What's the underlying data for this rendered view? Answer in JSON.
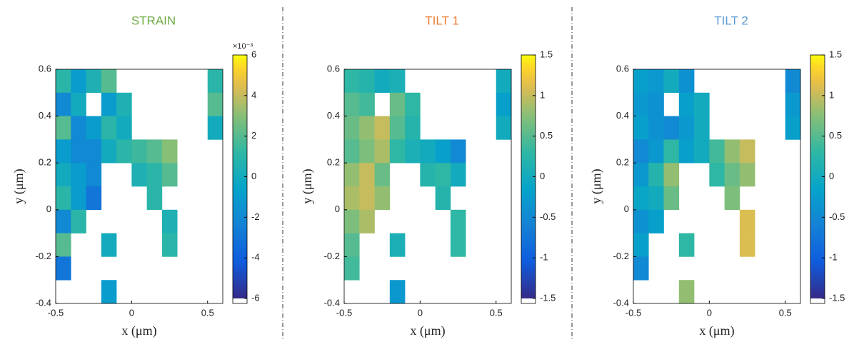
{
  "chart_data": [
    {
      "type": "heatmap",
      "title": "STRAIN",
      "title_color": "#70ad47",
      "xlabel": "x (μm)",
      "ylabel": "y (μm)",
      "xlim": [
        -0.5,
        0.6
      ],
      "xticks": [
        -0.5,
        0,
        0.5
      ],
      "ylim": [
        -0.4,
        0.6
      ],
      "yticks": [
        -0.4,
        -0.2,
        0,
        0.2,
        0.4,
        0.6
      ],
      "colormap": "parula",
      "clim": [
        -6,
        6
      ],
      "cticks": [
        -6,
        -4,
        -2,
        0,
        2,
        4,
        6
      ],
      "cexponent": "×10⁻³",
      "x": [
        -0.45,
        -0.35,
        -0.25,
        -0.15,
        -0.05,
        0.05,
        0.15,
        0.25,
        0.35,
        0.45,
        0.55
      ],
      "y": [
        0.55,
        0.45,
        0.35,
        0.25,
        0.15,
        0.05,
        -0.05,
        -0.15,
        -0.25,
        -0.35
      ],
      "z": [
        [
          1,
          -1,
          0.5,
          2,
          null,
          null,
          null,
          null,
          null,
          null,
          1
        ],
        [
          -2,
          0,
          null,
          -1,
          0.5,
          null,
          null,
          null,
          null,
          null,
          2
        ],
        [
          2,
          -2,
          -1,
          1,
          0,
          null,
          null,
          null,
          null,
          null,
          0
        ],
        [
          -1,
          -2,
          -2,
          0,
          1,
          1.5,
          2,
          3,
          null,
          null,
          null
        ],
        [
          0,
          -1,
          -2,
          null,
          null,
          0.5,
          1,
          2,
          null,
          null,
          null
        ],
        [
          1,
          -1,
          -3,
          null,
          null,
          null,
          1,
          null,
          null,
          null,
          null
        ],
        [
          -2,
          1,
          null,
          null,
          null,
          null,
          null,
          0.5,
          null,
          null,
          null
        ],
        [
          2,
          null,
          null,
          0,
          null,
          null,
          null,
          1,
          null,
          null,
          null
        ],
        [
          -3,
          null,
          null,
          null,
          null,
          null,
          null,
          null,
          null,
          null,
          null
        ],
        [
          null,
          null,
          null,
          -1,
          null,
          null,
          null,
          null,
          null,
          null,
          null
        ]
      ]
    },
    {
      "type": "heatmap",
      "title": "TILT 1",
      "title_color": "#ed7d31",
      "xlabel": "x (μm)",
      "ylabel": "y (μm)",
      "xlim": [
        -0.5,
        0.6
      ],
      "xticks": [
        -0.5,
        0,
        0.5
      ],
      "ylim": [
        -0.4,
        0.6
      ],
      "yticks": [
        -0.4,
        -0.2,
        0,
        0.2,
        0.4,
        0.6
      ],
      "colormap": "parula",
      "clim": [
        -1.5,
        1.5
      ],
      "cticks": [
        -1.5,
        -1,
        -0.5,
        0,
        0.5,
        1,
        1.5
      ],
      "x": [
        -0.45,
        -0.35,
        -0.25,
        -0.15,
        -0.05,
        0.05,
        0.15,
        0.25,
        0.35,
        0.45,
        0.55
      ],
      "y": [
        0.55,
        0.45,
        0.35,
        0.25,
        0.15,
        0.05,
        -0.05,
        -0.15,
        -0.25,
        -0.35
      ],
      "z": [
        [
          0.3,
          0.2,
          0,
          0.1,
          null,
          null,
          null,
          null,
          null,
          null,
          0
        ],
        [
          0.5,
          0.4,
          null,
          0.6,
          0.3,
          null,
          null,
          null,
          null,
          null,
          -0.2
        ],
        [
          0.6,
          0.8,
          1,
          0.5,
          0.2,
          null,
          null,
          null,
          null,
          null,
          0
        ],
        [
          0.5,
          0.7,
          0.9,
          0.3,
          0.1,
          0,
          -0.2,
          -0.5,
          null,
          null,
          null
        ],
        [
          0.8,
          1,
          0.6,
          null,
          null,
          0.2,
          0.3,
          0,
          null,
          null,
          null
        ],
        [
          0.9,
          1,
          0.8,
          null,
          null,
          null,
          0.2,
          null,
          null,
          null,
          null
        ],
        [
          0.7,
          0.9,
          null,
          null,
          null,
          null,
          null,
          0.3,
          null,
          null,
          null
        ],
        [
          0.5,
          null,
          null,
          0.1,
          null,
          null,
          null,
          0.3,
          null,
          null,
          null
        ],
        [
          0.4,
          null,
          null,
          null,
          null,
          null,
          null,
          null,
          null,
          null,
          null
        ],
        [
          null,
          null,
          null,
          -0.3,
          null,
          null,
          null,
          null,
          null,
          null,
          null
        ]
      ]
    },
    {
      "type": "heatmap",
      "title": "TILT 2",
      "title_color": "#5b9bd5",
      "xlabel": "x (μm)",
      "ylabel": "y (μm)",
      "xlim": [
        -0.5,
        0.6
      ],
      "xticks": [
        -0.5,
        0,
        0.5
      ],
      "ylim": [
        -0.4,
        0.6
      ],
      "yticks": [
        -0.4,
        -0.2,
        0,
        0.2,
        0.4,
        0.6
      ],
      "colormap": "parula",
      "clim": [
        -1.5,
        1.5
      ],
      "cticks": [
        -1.5,
        -1,
        -0.5,
        0,
        0.5,
        1,
        1.5
      ],
      "x": [
        -0.45,
        -0.35,
        -0.25,
        -0.15,
        -0.05,
        0.05,
        0.15,
        0.25,
        0.35,
        0.45,
        0.55
      ],
      "y": [
        0.55,
        0.45,
        0.35,
        0.25,
        0.15,
        0.05,
        -0.05,
        -0.15,
        -0.25,
        -0.35
      ],
      "z": [
        [
          -0.2,
          -0.3,
          0,
          -0.4,
          null,
          null,
          null,
          null,
          null,
          null,
          -0.5
        ],
        [
          -0.3,
          -0.4,
          null,
          -0.2,
          0,
          null,
          null,
          null,
          null,
          null,
          -0.3
        ],
        [
          -0.2,
          -0.4,
          -0.5,
          -0.3,
          0,
          null,
          null,
          null,
          null,
          null,
          -0.2
        ],
        [
          -0.5,
          -0.3,
          0.3,
          -0.2,
          0,
          0.4,
          0.8,
          1,
          null,
          null,
          null
        ],
        [
          -0.3,
          0.2,
          0.8,
          null,
          null,
          0.3,
          0.6,
          0.8,
          null,
          null,
          null
        ],
        [
          -0.1,
          0,
          0.6,
          null,
          null,
          null,
          0.7,
          null,
          null,
          null,
          null
        ],
        [
          -0.4,
          -0.2,
          null,
          null,
          null,
          null,
          null,
          1.1,
          null,
          null,
          null
        ],
        [
          -0.2,
          null,
          null,
          0.3,
          null,
          null,
          null,
          1.1,
          null,
          null,
          null
        ],
        [
          -0.5,
          null,
          null,
          null,
          null,
          null,
          null,
          null,
          null,
          null,
          null
        ],
        [
          null,
          null,
          null,
          0.8,
          null,
          null,
          null,
          null,
          null,
          null,
          null
        ]
      ]
    }
  ]
}
